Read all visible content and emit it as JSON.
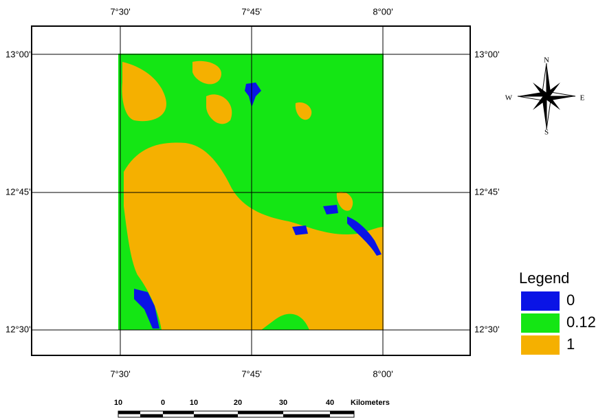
{
  "map": {
    "top_labels": [
      "7°30'",
      "7°45'",
      "8°00'"
    ],
    "bottom_labels": [
      "7°30'",
      "7°45'",
      "8°00'"
    ],
    "left_labels": [
      "13°00'",
      "12°45'",
      "12°30'"
    ],
    "right_labels": [
      "13°00'",
      "12°45'",
      "12°30'"
    ]
  },
  "compass": {
    "n": "N",
    "s": "S",
    "w": "W",
    "e": "E"
  },
  "legend": {
    "title": "Legend",
    "items": [
      {
        "label": "0",
        "color": "#0a14e6"
      },
      {
        "label": "0.12",
        "color": "#14e614"
      },
      {
        "label": "1",
        "color": "#f5b000"
      }
    ]
  },
  "scale_bar": {
    "labels": [
      "10",
      "0",
      "10",
      "20",
      "30",
      "40"
    ],
    "unit": "Kilometers"
  }
}
